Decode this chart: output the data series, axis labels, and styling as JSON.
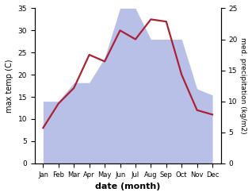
{
  "months": [
    "Jan",
    "Feb",
    "Mar",
    "Apr",
    "May",
    "Jun",
    "Jul",
    "Aug",
    "Sep",
    "Oct",
    "Nov",
    "Dec"
  ],
  "temperature": [
    8,
    13.5,
    17,
    24.5,
    23,
    30,
    28,
    32.5,
    32,
    20,
    12,
    11
  ],
  "precipitation": [
    10,
    10,
    13,
    13,
    17,
    25,
    25,
    20,
    20,
    20,
    12,
    11
  ],
  "temp_color": "#aa2233",
  "precip_color_fill": "#b8c0e8",
  "title": "",
  "xlabel": "date (month)",
  "ylabel_left": "max temp (C)",
  "ylabel_right": "med. precipitation (kg/m2)",
  "ylim_left": [
    0,
    35
  ],
  "ylim_right": [
    0,
    25
  ],
  "yticks_left": [
    0,
    5,
    10,
    15,
    20,
    25,
    30,
    35
  ],
  "yticks_right": [
    0,
    5,
    10,
    15,
    20,
    25
  ],
  "bg_color": "#ffffff",
  "temp_linewidth": 1.6
}
